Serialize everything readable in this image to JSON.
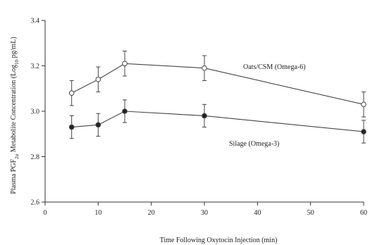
{
  "chart_data": {
    "type": "line",
    "xlabel": "Time Following Oxytocin Injection (min)",
    "ylabel": "Plasma PGF2α Metabolite Concentration (Log10 pg/mL)",
    "ylabel_parts": {
      "a": "Plasma PGF",
      "sub1": "2α",
      "b": " Metabolite Concentration (Log",
      "sub2": "10",
      "c": " pg/mL)"
    },
    "xlim": [
      0,
      60
    ],
    "ylim": [
      2.6,
      3.4
    ],
    "x_ticks": [
      0,
      10,
      20,
      30,
      40,
      50,
      60
    ],
    "y_ticks": [
      2.6,
      2.8,
      3.0,
      3.2,
      3.4
    ],
    "x_tick_labels": [
      "0",
      "10",
      "20",
      "30",
      "40",
      "50",
      "60"
    ],
    "y_tick_labels": [
      "2.6",
      "2.8",
      "3.0",
      "3.2",
      "3.4"
    ],
    "grid": false,
    "series": [
      {
        "name": "Oats/CSM (Omega-6)",
        "marker": "open-circle",
        "x": [
          5,
          10,
          15,
          30,
          60
        ],
        "y": [
          3.08,
          3.14,
          3.21,
          3.19,
          3.03
        ],
        "err": [
          0.055,
          0.055,
          0.055,
          0.055,
          0.055
        ]
      },
      {
        "name": "Silage (Omega-3)",
        "marker": "filled-circle",
        "x": [
          5,
          10,
          15,
          30,
          60
        ],
        "y": [
          2.93,
          2.94,
          3.0,
          2.98,
          2.91
        ],
        "err": [
          0.05,
          0.05,
          0.05,
          0.05,
          0.05
        ]
      }
    ],
    "colors": {
      "line": "#444444",
      "axis": "#333333",
      "open_fill": "#ffffff",
      "filled_fill": "#222222"
    }
  }
}
